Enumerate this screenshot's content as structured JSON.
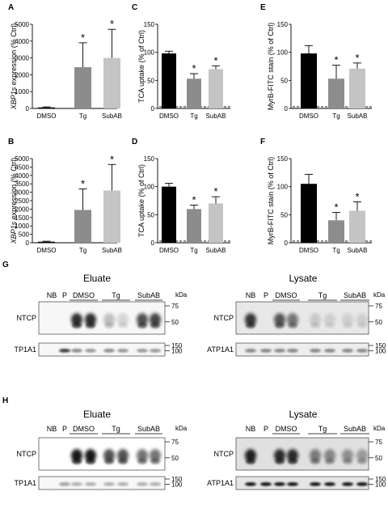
{
  "chart_data": [
    {
      "type": "bar",
      "panel": "A",
      "categories": [
        "DMSO",
        "Tg",
        "SubAB"
      ],
      "values": [
        60,
        2450,
        3000
      ],
      "errors": [
        30,
        1450,
        1700
      ],
      "significant": [
        false,
        true,
        true
      ],
      "colors": [
        "#000000",
        "#8c8c8c",
        "#c4c4c4"
      ],
      "ylabel_italic": "XBP1s",
      "ylabel_rest": " expression (% Ctrl)",
      "ylim": [
        0,
        5000
      ],
      "yticks": [
        "0",
        "1000",
        "2000",
        "3000",
        "4000",
        "5000"
      ]
    },
    {
      "type": "bar",
      "panel": "B",
      "categories": [
        "DMSO",
        "Tg",
        "SubAB"
      ],
      "values": [
        60,
        1950,
        3100
      ],
      "errors": [
        30,
        1250,
        1550
      ],
      "significant": [
        false,
        true,
        true
      ],
      "colors": [
        "#000000",
        "#8c8c8c",
        "#c4c4c4"
      ],
      "ylabel_italic": "XBP1s",
      "ylabel_rest": " expression (% Ctrl)",
      "ylim": [
        0,
        5000
      ],
      "yticks": [
        "0",
        "500",
        "1000",
        "1500",
        "2000",
        "2500",
        "3000",
        "3500",
        "4000",
        "4500",
        "5000"
      ]
    },
    {
      "type": "bar",
      "panel": "C",
      "categories": [
        "DMSO",
        "Tg",
        "SubAB"
      ],
      "values": [
        98,
        53,
        70
      ],
      "errors": [
        4,
        9,
        6
      ],
      "significant": [
        false,
        true,
        true
      ],
      "colors": [
        "#000000",
        "#8c8c8c",
        "#c4c4c4"
      ],
      "ylabel_italic": "",
      "ylabel_rest": "TCA uptake (% of Ctrl)",
      "ylim": [
        0,
        150
      ],
      "yticks": [
        "0",
        "50",
        "100",
        "150"
      ]
    },
    {
      "type": "bar",
      "panel": "D",
      "categories": [
        "DMSO",
        "Tg",
        "SubAB"
      ],
      "values": [
        100,
        60,
        70
      ],
      "errors": [
        6,
        7,
        12
      ],
      "significant": [
        false,
        true,
        true
      ],
      "colors": [
        "#000000",
        "#8c8c8c",
        "#c4c4c4"
      ],
      "ylabel_italic": "",
      "ylabel_rest": "TCA uptake (% of Ctrl)",
      "ylim": [
        0,
        150
      ],
      "yticks": [
        "0",
        "50",
        "100",
        "150"
      ]
    },
    {
      "type": "bar",
      "panel": "E",
      "categories": [
        "DMSO",
        "Tg",
        "SubAB"
      ],
      "values": [
        98,
        53,
        71
      ],
      "errors": [
        14,
        24,
        10
      ],
      "significant": [
        false,
        true,
        true
      ],
      "colors": [
        "#000000",
        "#8c8c8c",
        "#c4c4c4"
      ],
      "ylabel_italic": "",
      "ylabel_rest": "MyrB-FITC stain (% of Ctrl)",
      "ylim": [
        0,
        150
      ],
      "yticks": [
        "0",
        "50",
        "100",
        "150"
      ]
    },
    {
      "type": "bar",
      "panel": "F",
      "categories": [
        "DMSO",
        "Tg",
        "SubAB"
      ],
      "values": [
        105,
        40,
        57
      ],
      "errors": [
        17,
        14,
        16
      ],
      "significant": [
        false,
        true,
        true
      ],
      "colors": [
        "#000000",
        "#8c8c8c",
        "#c4c4c4"
      ],
      "ylabel_italic": "",
      "ylabel_rest": "MyrB-FITC stain (% of Ctrl)",
      "ylim": [
        0,
        150
      ],
      "yticks": [
        "0",
        "50",
        "100",
        "150"
      ]
    }
  ],
  "significance_mark": "*",
  "blots": {
    "G": {
      "panel": "G",
      "eluate": {
        "title": "Eluate",
        "lanes": [
          "NB",
          "P"
        ],
        "groups": [
          "DMSO",
          "Tg",
          "SubAB"
        ],
        "kda": "kDa",
        "upper": {
          "label": "NTCP",
          "markers": [
            "75",
            "50"
          ]
        },
        "lower": {
          "label": "TP1A1",
          "markers": [
            "150",
            "100"
          ]
        }
      },
      "lysate": {
        "title": "Lysate",
        "lanes": [
          "NB",
          "P"
        ],
        "groups": [
          "DMSO",
          "Tg",
          "SubAB"
        ],
        "kda": "kDa",
        "upper": {
          "label": "NTCP",
          "markers": [
            "75",
            "50"
          ]
        },
        "lower": {
          "label": "ATP1A1",
          "markers": [
            "150",
            "100"
          ]
        }
      }
    },
    "H": {
      "panel": "H",
      "eluate": {
        "title": "Eluate",
        "lanes": [
          "NB",
          "P"
        ],
        "groups": [
          "DMSO",
          "Tg",
          "SubAB"
        ],
        "kda": "kDa",
        "upper": {
          "label": "NTCP",
          "markers": [
            "75",
            "50"
          ]
        },
        "lower": {
          "label": "TP1A1",
          "markers": [
            "150",
            "100"
          ]
        }
      },
      "lysate": {
        "title": "Lysate",
        "lanes": [
          "NB",
          "P"
        ],
        "groups": [
          "DMSO",
          "Tg",
          "SubAB"
        ],
        "kda": "kDa",
        "upper": {
          "label": "NTCP",
          "markers": [
            "75",
            "50"
          ]
        },
        "lower": {
          "label": "ATP1A1",
          "markers": [
            "150",
            "100"
          ]
        }
      }
    }
  }
}
